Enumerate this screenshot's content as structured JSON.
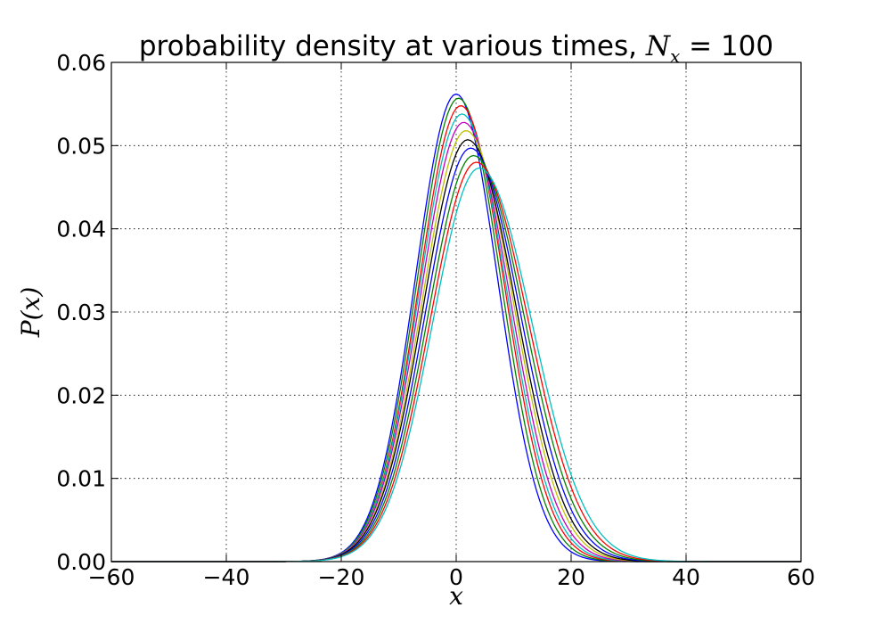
{
  "chart_data": {
    "type": "line",
    "title": {
      "prefix": "probability density at various times, ",
      "math_symbol": "N",
      "math_subscript": "x",
      "math_equals": " = ",
      "value": "100"
    },
    "xlabel": "x",
    "ylabel": "P(x)",
    "xlim": [
      -60,
      60
    ],
    "ylim": [
      0,
      0.06
    ],
    "xticks": [
      -60,
      -40,
      -20,
      0,
      20,
      40,
      60
    ],
    "yticks": [
      0.0,
      0.01,
      0.02,
      0.03,
      0.04,
      0.05,
      0.06
    ],
    "xtick_labels": [
      "−60",
      "−40",
      "−20",
      "0",
      "20",
      "40",
      "60"
    ],
    "ytick_labels": [
      "0.00",
      "0.01",
      "0.02",
      "0.03",
      "0.04",
      "0.05",
      "0.06"
    ],
    "grid": true,
    "legend": "none",
    "series": [
      {
        "color": "#0000ff",
        "peak_x": 0.0,
        "peak_y": 0.0562,
        "sigma_left": 7.1,
        "sigma_right": 7.2
      },
      {
        "color": "#008000",
        "peak_x": 0.4,
        "peak_y": 0.0557,
        "sigma_left": 7.2,
        "sigma_right": 7.4
      },
      {
        "color": "#ff0000",
        "peak_x": 0.8,
        "peak_y": 0.0548,
        "sigma_left": 7.3,
        "sigma_right": 7.6
      },
      {
        "color": "#00bfbf",
        "peak_x": 1.0,
        "peak_y": 0.0538,
        "sigma_left": 7.4,
        "sigma_right": 7.8
      },
      {
        "color": "#bf00bf",
        "peak_x": 1.3,
        "peak_y": 0.0528,
        "sigma_left": 7.5,
        "sigma_right": 8.0
      },
      {
        "color": "#bfbf00",
        "peak_x": 1.7,
        "peak_y": 0.0518,
        "sigma_left": 7.6,
        "sigma_right": 8.2
      },
      {
        "color": "#000000",
        "peak_x": 2.0,
        "peak_y": 0.0507,
        "sigma_left": 7.7,
        "sigma_right": 8.4
      },
      {
        "color": "#0000ff",
        "peak_x": 2.5,
        "peak_y": 0.0497,
        "sigma_left": 7.8,
        "sigma_right": 8.6
      },
      {
        "color": "#008000",
        "peak_x": 3.0,
        "peak_y": 0.0488,
        "sigma_left": 7.9,
        "sigma_right": 8.8
      },
      {
        "color": "#ff0000",
        "peak_x": 3.5,
        "peak_y": 0.048,
        "sigma_left": 8.0,
        "sigma_right": 9.0
      },
      {
        "color": "#00bfbf",
        "peak_x": 4.0,
        "peak_y": 0.0473,
        "sigma_left": 8.1,
        "sigma_right": 9.2
      }
    ]
  }
}
